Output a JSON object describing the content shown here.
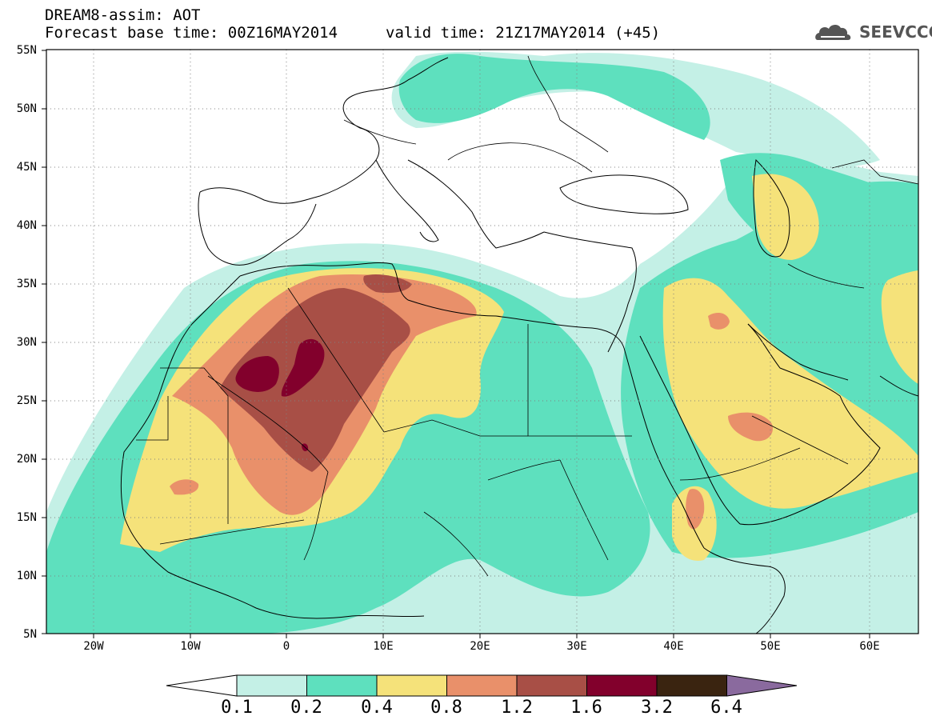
{
  "header": {
    "title": "DREAM8-assim: AOT",
    "base_time": "Forecast base time: 00Z16MAY2014",
    "valid_time": "valid time: 21Z17MAY2014 (+45)"
  },
  "logo": {
    "text": "SEEVCCC",
    "icon": "cloud-icon"
  },
  "axes": {
    "lat_labels": [
      "55N",
      "50N",
      "45N",
      "40N",
      "35N",
      "30N",
      "25N",
      "20N",
      "15N",
      "10N",
      "5N"
    ],
    "lon_labels": [
      "20W",
      "10W",
      "0",
      "10E",
      "20E",
      "30E",
      "40E",
      "50E",
      "60E"
    ],
    "lon_range": [
      -25,
      65
    ],
    "lat_range": [
      5,
      55
    ]
  },
  "colorbar": {
    "ticks": [
      "0.1",
      "0.2",
      "0.4",
      "0.8",
      "1.2",
      "1.6",
      "3.2",
      "6.4"
    ],
    "colors": [
      "#ffffff",
      "#c4f0e6",
      "#5ee0be",
      "#f5e27a",
      "#e9906a",
      "#a84f46",
      "#82002c",
      "#3a2410",
      "#8a6a9e"
    ]
  },
  "map": {
    "field": "Aerosol Optical Thickness",
    "colors": {
      "light": "#c4f0e6",
      "teal": "#5ee0be",
      "yellow": "#f5e27a",
      "orange": "#e9906a",
      "brown": "#a84f46",
      "maroon": "#82002c",
      "lines": "#000000"
    }
  }
}
